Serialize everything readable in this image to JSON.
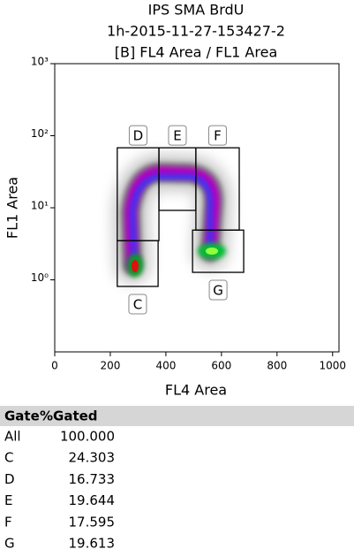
{
  "chart_data": {
    "type": "gates",
    "title": [
      "IPS SMA BrdU",
      "1h-2015-11-27-153427-2",
      "[B] FL4 Area / FL1 Area"
    ],
    "x_label": "FL4 Area",
    "y_label": "FL1 Area",
    "xlim": [
      0,
      1023
    ],
    "xticks": [
      0,
      200,
      400,
      600,
      800,
      1000
    ],
    "ylim": [
      0.1,
      1000
    ],
    "log_y": true,
    "yticks": [
      {
        "value": 1,
        "label": "10⁰"
      },
      {
        "value": 10,
        "label": "10¹"
      },
      {
        "value": 100,
        "label": "10²"
      },
      {
        "value": 1000,
        "label": "10³"
      }
    ],
    "gates": [
      {
        "name": "D",
        "xlim": [
          225,
          375
        ],
        "ylim": [
          3.5,
          68
        ]
      },
      {
        "name": "E",
        "xlim": [
          375,
          508
        ],
        "ylim": [
          9.2,
          68
        ]
      },
      {
        "name": "F",
        "xlim": [
          508,
          664
        ],
        "ylim": [
          4.9,
          68
        ]
      },
      {
        "name": "C",
        "xlim": [
          225,
          372
        ],
        "ylim": [
          0.81,
          3.5
        ]
      },
      {
        "name": "G",
        "xlim": [
          496,
          680
        ],
        "ylim": [
          1.27,
          4.9
        ]
      }
    ]
  },
  "table": {
    "header": [
      "Gate",
      "%Gated"
    ],
    "rows": [
      [
        "All",
        "100.000"
      ],
      [
        "C",
        "24.303"
      ],
      [
        "D",
        "16.733"
      ],
      [
        "E",
        "19.644"
      ],
      [
        "F",
        "17.595"
      ],
      [
        "G",
        "19.613"
      ]
    ]
  }
}
